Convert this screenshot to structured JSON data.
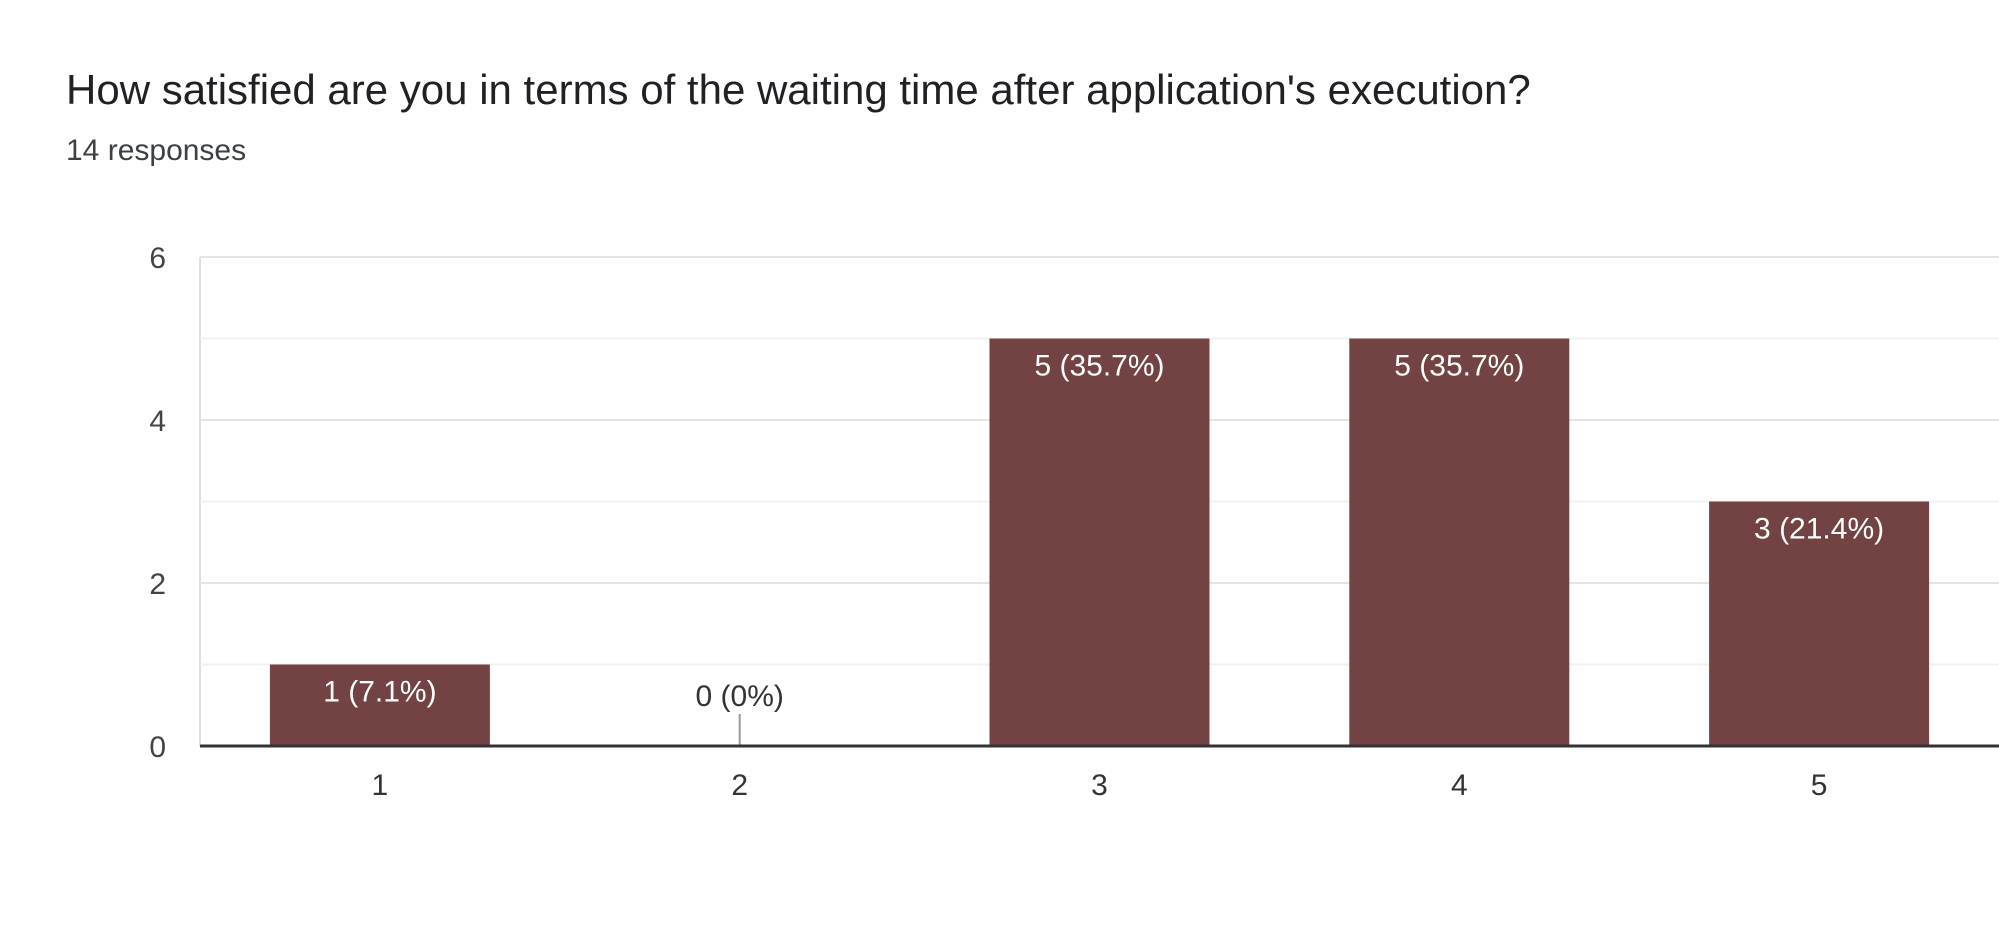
{
  "header": {
    "title": "How satisfied are you in terms of the waiting time after application's execution?",
    "responses": "14 responses"
  },
  "chart_data": {
    "type": "bar",
    "categories": [
      "1",
      "2",
      "3",
      "4",
      "5"
    ],
    "values": [
      1,
      0,
      5,
      5,
      3
    ],
    "data_labels": [
      "1 (7.1%)",
      "0 (0%)",
      "5 (35.7%)",
      "5 (35.7%)",
      "3 (21.4%)"
    ],
    "yticks": [
      "0",
      "2",
      "4",
      "6"
    ],
    "ylim": [
      0,
      6
    ],
    "gridlines": true,
    "bar_color": "#734343"
  }
}
